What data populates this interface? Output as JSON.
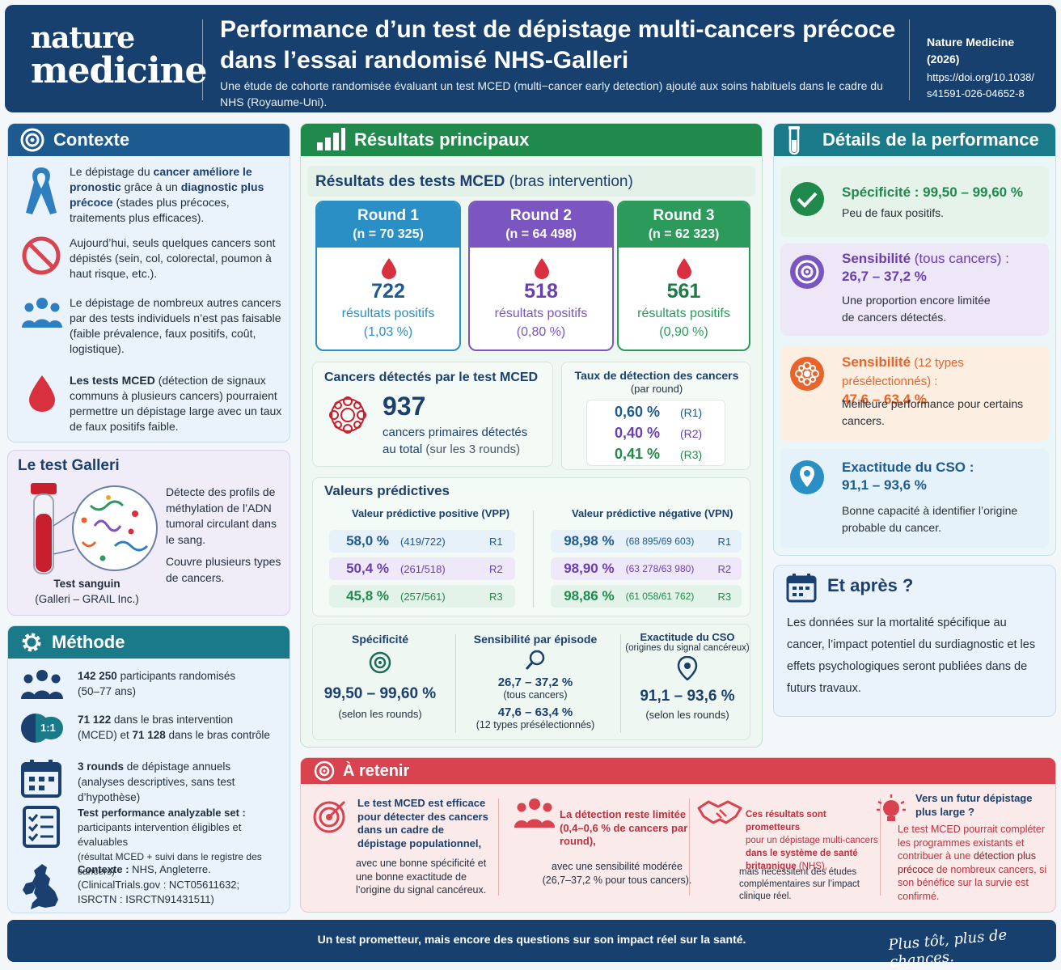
{
  "header": {
    "logo_line1": "nature",
    "logo_line2": "medicine",
    "title": "Performance d’un test de dépistage multi-cancers précoce dans l’essai randomisé NHS-Galleri",
    "subtitle": "Une étude de cohorte randomisée évaluant un test MCED (multi−cancer early detection) ajouté aux soins habituels dans le cadre du NHS (Royaume-Uni).",
    "journal_line1": "Nature Medicine",
    "journal_line2": "(2026)",
    "doi_line1": "https://doi.org/10.1038/",
    "doi_line2": "s41591-026-04652-8"
  },
  "context": {
    "title": "Contexte",
    "items": [
      {
        "pre": "Le dépistage du ",
        "b1": "cancer améliore le pronostic",
        "mid": " grâce à un ",
        "b2": "diagnostic plus précoce",
        "post": " (stades plus précoces, traitements plus efficaces)."
      },
      {
        "text": "Aujourd’hui, seuls quelques cancers sont dépistés (sein, col, colorectal, poumon à haut risque, etc.)."
      },
      {
        "text": "Le dépistage de nombreux autres cancers par des tests individuels n’est pas faisable (faible prévalence, faux positifs, coût, logistique)."
      },
      {
        "b1": "Les tests MCED",
        "post": " (détection de signaux communs à plusieurs cancers) pourraient permettre un dépistage large avec un taux de faux positifs faible."
      }
    ]
  },
  "galleri": {
    "title": "Le test Galleri",
    "desc1": "Détecte des profils de méthylation de l’ADN tumoral circulant dans le sang.",
    "desc2": "Couvre plusieurs types de cancers.",
    "cap1": "Test sanguin",
    "cap2": "(Galleri – GRAIL Inc.)"
  },
  "method": {
    "title": "Méthode",
    "i1_b": "142 250",
    "i1_t": " participants randomisés",
    "i1_s": "(50–77 ans)",
    "ratio": "1:1",
    "i2_b1": "71 122",
    "i2_t1": " dans le bras intervention",
    "i2_t2": "(MCED) et ",
    "i2_b2": "71 128",
    "i2_t3": " dans le bras contrôle",
    "i3_b": "3 rounds",
    "i3_t": " de dépistage annuels",
    "i3_s": "(analyses descriptives, sans test d’hypothèse)",
    "i4_b": "Test performance analyzable set :",
    "i4_t": "participants intervention éligibles et évaluables",
    "i4_s": "(résultat MCED + suivi dans le registre des cancers)",
    "i5_b": "Contexte :",
    "i5_t": " NHS, Angleterre.",
    "i5_l2": "(ClinicalTrials.gov : NCT05611632;",
    "i5_l3": "ISRCTN : ISRCTN91431511)"
  },
  "results": {
    "title": "Résultats principaux",
    "mced_title_b": "Résultats des tests MCED",
    "mced_title_t": " (bras intervention)",
    "rounds": [
      {
        "name": "Round 1",
        "n": "(n = 70 325)",
        "value": "722",
        "label": "résultats positifs",
        "pct": "(1,03 %)"
      },
      {
        "name": "Round 2",
        "n": "(n = 64 498)",
        "value": "518",
        "label": "résultats positifs",
        "pct": "(0,80 %)"
      },
      {
        "name": "Round 3",
        "n": "(n = 62 323)",
        "value": "561",
        "label": "résultats positifs",
        "pct": "(0,90 %)"
      }
    ],
    "detected_title": "Cancers détectés par le test MCED",
    "detected_value": "937",
    "detected_l1": "cancers primaires détectés",
    "detected_l2a": "au total",
    "detected_l2b": " (sur les 3 rounds)",
    "rate_title": "Taux de détection des cancers",
    "rate_sub": "(par round)",
    "rates": [
      {
        "v": "0,60 %",
        "r": "(R1)"
      },
      {
        "v": "0,40 %",
        "r": "(R2)"
      },
      {
        "v": "0,41 %",
        "r": "(R3)"
      }
    ],
    "pv_title": "Valeurs prédictives",
    "ppv_title": "Valeur prédictive positive (VPP)",
    "npv_title": "Valeur prédictive négative (VPN)",
    "ppv": [
      {
        "v": "58,0 %",
        "f": "(419/722)",
        "r": "R1"
      },
      {
        "v": "50,4 %",
        "f": "(261/518)",
        "r": "R2"
      },
      {
        "v": "45,8 %",
        "f": "(257/561)",
        "r": "R3"
      }
    ],
    "npv": [
      {
        "v": "98,98 %",
        "f": "(68 895/69 603)",
        "r": "R1"
      },
      {
        "v": "98,90 %",
        "f": "(63 278/63 980)",
        "r": "R2"
      },
      {
        "v": "98,86 %",
        "f": "(61 058/61 762)",
        "r": "R3"
      }
    ],
    "spec_title": "Spécificité",
    "spec_value": "99,50 – 99,60 %",
    "spec_note": "(selon les rounds)",
    "sens_title": "Sensibilité par épisode",
    "sens_v1": "26,7 – 37,2 %",
    "sens_n1": "(tous cancers)",
    "sens_v2": "47,6 – 63,4 %",
    "sens_n2": "(12 types présélectionnés)",
    "cso_title": "Exactitude du CSO",
    "cso_sub": "(origines du signal cancéreux)",
    "cso_value": "91,1 – 93,6 %",
    "cso_note": "(selon les rounds)"
  },
  "perf": {
    "title": "Détails de la performance",
    "c1_h": "Spécificité : 99,50 – 99,60 %",
    "c1_d": "Peu de faux positifs.",
    "c2_h1": "Sensibilité",
    "c2_h1b": " (tous cancers) :",
    "c2_h2": "26,7 – 37,2 %",
    "c2_d1": "Une proportion encore limitée",
    "c2_d2": "de cancers détectés.",
    "c3_h1": "Sensibilité",
    "c3_h1b": " (12 types présélectionnés) :",
    "c3_h2": "47,6 – 63,4 %",
    "c3_d1": "Meilleure performance pour certains",
    "c3_d2": "cancers.",
    "c4_h1": "Exactitude du CSO :",
    "c4_h2": "91,1 – 93,6 %",
    "c4_d1": "Bonne capacité à identifier l’origine",
    "c4_d2": "probable du cancer."
  },
  "next": {
    "title": "Et après ?",
    "text": "Les données sur la mortalité spécifique au cancer, l’impact potentiel du surdiagnostic et les effets psychologiques seront publiées dans de futurs travaux."
  },
  "retain": {
    "title": "À retenir",
    "c1_b": "Le test MCED est efficace pour détecter des cancers dans un cadre de dépistage populationnel,",
    "c1_t": "avec une bonne spécificité et une bonne exactitude de l’origine du signal cancéreux.",
    "c2_b": "La détection reste limitée (0,4–0,6 % de cancers par round),",
    "c2_t": "avec une sensibilité modérée (26,7–37,2 % pour tous cancers).",
    "c3_b": "Ces résultats sont prometteurs",
    "c3_t1": "pour un dépistage multi-cancers",
    "c3_b2": "dans le système de santé britannique",
    "c3_t2": " (NHS),",
    "c3_t3": "mais nécessitent des études complémentaires sur l’impact clinique réel.",
    "c4_b": "Vers un futur dépistage plus large ?",
    "c4_t1": "Le test MCED pourrait compléter les programmes existants et contribuer à une ",
    "c4_b2": "détection plus précoce",
    "c4_t2": " de nombreux cancers, si son bénéfice sur la survie est confirmé."
  },
  "footer": {
    "text": "Un test prometteur, mais encore des questions sur son impact réel sur la santé.",
    "slogan": "Plus tôt, plus de chances."
  },
  "colors": {
    "navy": "#17406f",
    "green": "#1f8a4c",
    "round1": "#2a8fc4",
    "round2": "#7b55c0",
    "round3": "#2c9a5a",
    "red": "#d9434f",
    "orange": "#e8642a",
    "teal": "#1a7a8a"
  }
}
